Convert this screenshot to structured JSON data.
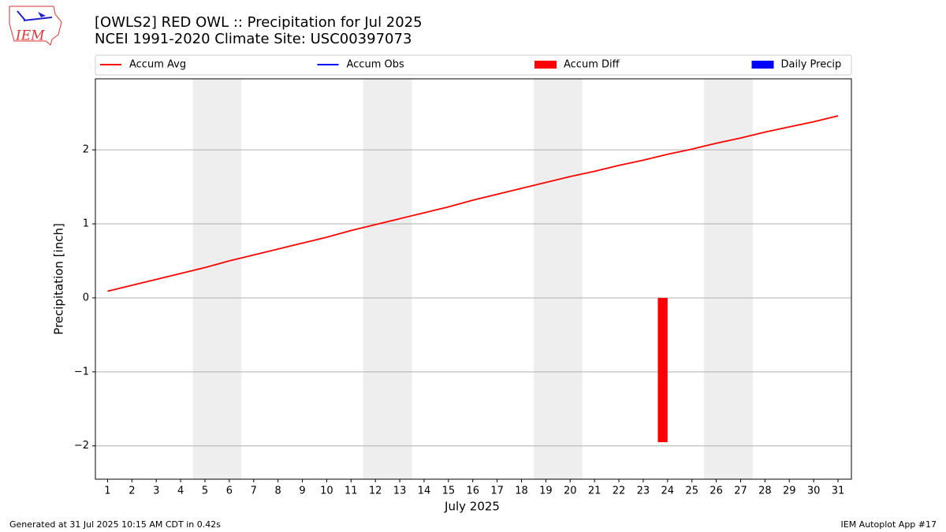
{
  "logo_text": "IEM",
  "chart_data": {
    "type": "line",
    "title": "[OWLS2] RED OWL :: Precipitation for Jul 2025",
    "subtitle": "NCEI 1991-2020 Climate Site: USC00397073",
    "xlabel": "July 2025",
    "ylabel": "Precipitation [inch]",
    "x": [
      1,
      2,
      3,
      4,
      5,
      6,
      7,
      8,
      9,
      10,
      11,
      12,
      13,
      14,
      15,
      16,
      17,
      18,
      19,
      20,
      21,
      22,
      23,
      24,
      25,
      26,
      27,
      28,
      29,
      30,
      31
    ],
    "xlim": [
      0.5,
      31.55
    ],
    "xticks": [
      1,
      2,
      3,
      4,
      5,
      6,
      7,
      8,
      9,
      10,
      11,
      12,
      13,
      14,
      15,
      16,
      17,
      18,
      19,
      20,
      21,
      22,
      23,
      24,
      25,
      26,
      27,
      28,
      29,
      30,
      31
    ],
    "ylim": [
      -2.45,
      2.96
    ],
    "yticks": [
      {
        "value": -2,
        "label": "−2"
      },
      {
        "value": -1,
        "label": "−1"
      },
      0,
      1,
      2
    ],
    "grid": "y",
    "shaded_spans": [
      [
        4.5,
        6.5
      ],
      [
        11.5,
        13.5
      ],
      [
        18.5,
        20.5
      ],
      [
        25.5,
        27.5
      ]
    ],
    "shade_color": "#eeeeee",
    "series": [
      {
        "name": "Accum Avg",
        "type": "line",
        "color": "#ff0000",
        "values": [
          0.09,
          0.17,
          0.25,
          0.33,
          0.41,
          0.5,
          0.58,
          0.66,
          0.74,
          0.82,
          0.91,
          0.99,
          1.07,
          1.15,
          1.23,
          1.32,
          1.4,
          1.48,
          1.56,
          1.64,
          1.71,
          1.79,
          1.86,
          1.94,
          2.01,
          2.09,
          2.16,
          2.24,
          2.31,
          2.38,
          2.46
        ]
      },
      {
        "name": "Accum Obs",
        "type": "line",
        "color": "#0000ff",
        "values": [
          null,
          null,
          null,
          null,
          null,
          null,
          null,
          null,
          null,
          null,
          null,
          null,
          null,
          null,
          null,
          null,
          null,
          null,
          null,
          null,
          null,
          null,
          null,
          null,
          null,
          null,
          null,
          null,
          null,
          null,
          null
        ]
      },
      {
        "name": "Accum Diff",
        "type": "bar",
        "color": "#ff0000",
        "values": [
          null,
          null,
          null,
          null,
          null,
          null,
          null,
          null,
          null,
          null,
          null,
          null,
          null,
          null,
          null,
          null,
          null,
          null,
          null,
          null,
          null,
          null,
          null,
          -1.95,
          null,
          null,
          null,
          null,
          null,
          null,
          null
        ]
      },
      {
        "name": "Daily Precip",
        "type": "bar",
        "color": "#0000ff",
        "values": [
          null,
          null,
          null,
          null,
          null,
          null,
          null,
          null,
          null,
          null,
          null,
          null,
          null,
          null,
          null,
          null,
          null,
          null,
          null,
          null,
          null,
          null,
          null,
          null,
          null,
          null,
          null,
          null,
          null,
          null,
          null
        ]
      }
    ],
    "footer_left": "Generated at 31 Jul 2025 10:15 AM CDT in 0.42s",
    "footer_right": "IEM Autoplot App #17"
  }
}
